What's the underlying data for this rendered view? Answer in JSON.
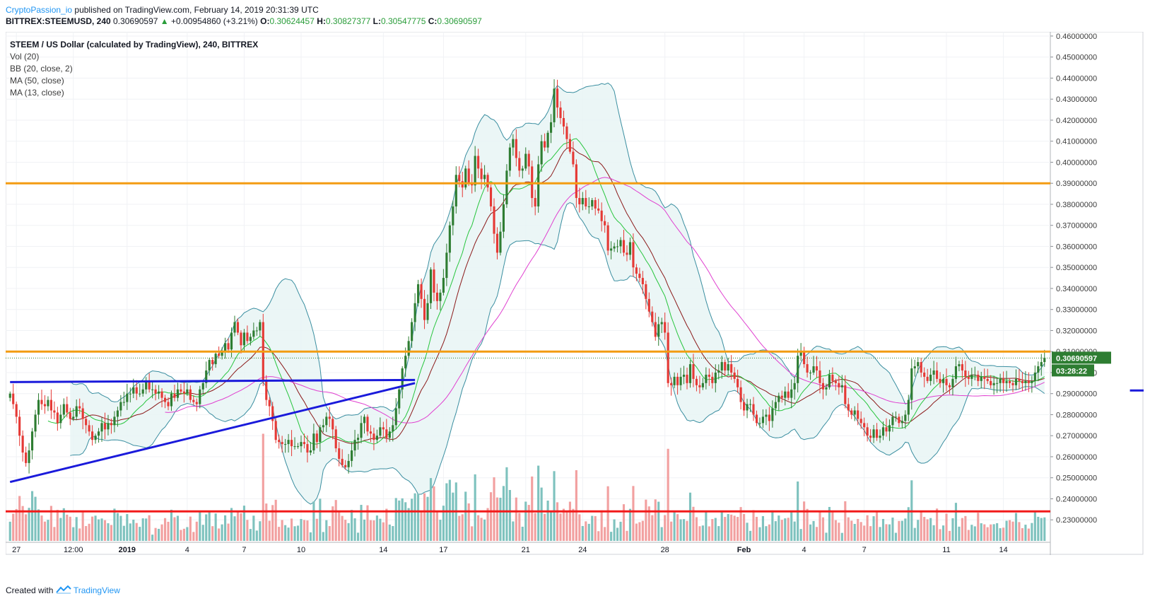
{
  "header": {
    "author": "CryptoPassion_io",
    "published": "published on TradingView.com, February 14, 2019 20:31:39 UTC"
  },
  "symbol_bar": {
    "symbol": "BITTREX:STEEMUSD, 240",
    "last": "0.30690597",
    "change_arrow": "▲",
    "change": "+0.00954860 (+3.21%)",
    "o_label": "O:",
    "o_value": "0.30624457",
    "h_label": "H:",
    "h_value": "0.30827377",
    "l_label": "L:",
    "l_value": "0.30547775",
    "c_label": "C:",
    "c_value": "0.30690597"
  },
  "legend": {
    "title": "STEEM / US Dollar (calculated by TradingView), 240, BITTREX",
    "indicators": [
      "Vol (20)",
      "BB (20, close, 2)",
      "MA (50, close)",
      "MA (13, close)"
    ]
  },
  "footer": {
    "created_with": "Created with",
    "brand": "TradingView"
  },
  "colors": {
    "up": "#2e7d32",
    "down": "#e53935",
    "bb": "#3a8ea0",
    "bb_fill": "#e8f4f4",
    "ma13": "#27c53d",
    "ma20": "#8b1a1a",
    "ma50": "#e040d0",
    "orange": "#f39c12",
    "blue": "#1a1adb",
    "red": "#f21a1a",
    "vol_up": "#7ec2be",
    "vol_down": "#f2a0a0",
    "price_tag": "#2e7d32",
    "timer_tag": "#2e7d32"
  },
  "chart_data": {
    "type": "candlestick",
    "y_range": [
      0.222,
      0.462
    ],
    "y_ticks": [
      "0.46000000",
      "0.45000000",
      "0.44000000",
      "0.43000000",
      "0.42000000",
      "0.41000000",
      "0.40000000",
      "0.39000000",
      "0.38000000",
      "0.37000000",
      "0.36000000",
      "0.35000000",
      "0.34000000",
      "0.33000000",
      "0.32000000",
      "0.31000000",
      "0.30000000",
      "0.29000000",
      "0.28000000",
      "0.27000000",
      "0.26000000",
      "0.25000000",
      "0.24000000",
      "0.23000000"
    ],
    "x_ticks": [
      "27",
      "12:00",
      "2019",
      "4",
      "7",
      "10",
      "14",
      "17",
      "21",
      "24",
      "28",
      "Feb",
      "4",
      "7",
      "11",
      "14"
    ],
    "last_price": "0.30690597",
    "countdown": "03:28:22",
    "horizontal_levels": [
      {
        "name": "resistance-upper",
        "price": 0.39,
        "color": "orange"
      },
      {
        "name": "resistance-lower",
        "price": 0.31,
        "color": "orange"
      },
      {
        "name": "support-red",
        "price": 0.234,
        "color": "red"
      }
    ],
    "drawn_lines": [
      {
        "name": "trendline-rising",
        "from": {
          "time": 0,
          "price": 0.248
        },
        "to": {
          "time": 128,
          "price": 0.295
        }
      },
      {
        "name": "flag-top",
        "from": {
          "time": 0,
          "price": 0.2955
        },
        "to": {
          "time": 128,
          "price": 0.2965
        }
      },
      {
        "name": "support-blue-feb",
        "from": {
          "time": 354,
          "price": 0.2915
        },
        "to": {
          "time": 487,
          "price": 0.2915
        }
      }
    ],
    "closes": [
      0.29,
      0.285,
      0.279,
      0.27,
      0.262,
      0.257,
      0.263,
      0.272,
      0.28,
      0.287,
      0.285,
      0.284,
      0.287,
      0.282,
      0.281,
      0.276,
      0.28,
      0.285,
      0.281,
      0.278,
      0.279,
      0.284,
      0.283,
      0.278,
      0.275,
      0.272,
      0.268,
      0.27,
      0.272,
      0.276,
      0.273,
      0.276,
      0.275,
      0.279,
      0.282,
      0.286,
      0.286,
      0.29,
      0.29,
      0.293,
      0.29,
      0.29,
      0.292,
      0.296,
      0.292,
      0.292,
      0.29,
      0.291,
      0.288,
      0.286,
      0.284,
      0.29,
      0.288,
      0.292,
      0.291,
      0.29,
      0.292,
      0.287,
      0.286,
      0.285,
      0.292,
      0.295,
      0.301,
      0.306,
      0.304,
      0.309,
      0.308,
      0.31,
      0.314,
      0.311,
      0.319,
      0.324,
      0.319,
      0.313,
      0.319,
      0.315,
      0.317,
      0.32,
      0.32,
      0.324,
      0.296,
      0.287,
      0.284,
      0.277,
      0.268,
      0.267,
      0.266,
      0.266,
      0.268,
      0.265,
      0.265,
      0.265,
      0.267,
      0.266,
      0.262,
      0.263,
      0.271,
      0.267,
      0.274,
      0.275,
      0.279,
      0.278,
      0.273,
      0.264,
      0.259,
      0.256,
      0.255,
      0.258,
      0.263,
      0.268,
      0.269,
      0.276,
      0.279,
      0.272,
      0.271,
      0.268,
      0.27,
      0.274,
      0.273,
      0.269,
      0.272,
      0.275,
      0.283,
      0.292,
      0.302,
      0.308,
      0.315,
      0.324,
      0.333,
      0.342,
      0.335,
      0.325,
      0.333,
      0.349,
      0.338,
      0.334,
      0.338,
      0.345,
      0.357,
      0.37,
      0.379,
      0.394,
      0.391,
      0.388,
      0.397,
      0.39,
      0.389,
      0.403,
      0.397,
      0.392,
      0.394,
      0.388,
      0.379,
      0.366,
      0.357,
      0.367,
      0.38,
      0.396,
      0.407,
      0.411,
      0.402,
      0.396,
      0.397,
      0.404,
      0.398,
      0.383,
      0.379,
      0.399,
      0.41,
      0.407,
      0.414,
      0.419,
      0.435,
      0.426,
      0.421,
      0.417,
      0.411,
      0.405,
      0.399,
      0.383,
      0.38,
      0.383,
      0.379,
      0.379,
      0.382,
      0.378,
      0.377,
      0.372,
      0.37,
      0.358,
      0.359,
      0.36,
      0.36,
      0.363,
      0.357,
      0.356,
      0.362,
      0.35,
      0.347,
      0.345,
      0.342,
      0.335,
      0.329,
      0.324,
      0.317,
      0.323,
      0.324,
      0.319,
      0.295,
      0.294,
      0.298,
      0.294,
      0.298,
      0.299,
      0.295,
      0.304,
      0.297,
      0.294,
      0.293,
      0.295,
      0.299,
      0.298,
      0.295,
      0.3,
      0.301,
      0.305,
      0.301,
      0.304,
      0.3,
      0.297,
      0.293,
      0.286,
      0.282,
      0.285,
      0.285,
      0.28,
      0.276,
      0.276,
      0.279,
      0.28,
      0.277,
      0.283,
      0.286,
      0.289,
      0.288,
      0.291,
      0.288,
      0.292,
      0.295,
      0.308,
      0.31,
      0.304,
      0.3,
      0.3,
      0.303,
      0.301,
      0.295,
      0.292,
      0.293,
      0.299,
      0.296,
      0.295,
      0.293,
      0.294,
      0.285,
      0.282,
      0.28,
      0.282,
      0.278,
      0.276,
      0.274,
      0.27,
      0.269,
      0.273,
      0.269,
      0.27,
      0.274,
      0.272,
      0.275,
      0.279,
      0.279,
      0.276,
      0.277,
      0.28,
      0.287,
      0.302,
      0.303,
      0.305,
      0.3,
      0.298,
      0.296,
      0.299,
      0.301,
      0.297,
      0.295,
      0.297,
      0.294,
      0.293,
      0.297,
      0.303,
      0.304,
      0.301,
      0.298,
      0.297,
      0.299,
      0.299,
      0.296,
      0.298,
      0.297,
      0.296,
      0.294,
      0.295,
      0.295,
      0.297,
      0.295,
      0.296,
      0.295,
      0.294,
      0.297,
      0.296,
      0.295,
      0.296,
      0.295,
      0.296,
      0.3,
      0.303,
      0.305,
      0.3069
    ]
  }
}
